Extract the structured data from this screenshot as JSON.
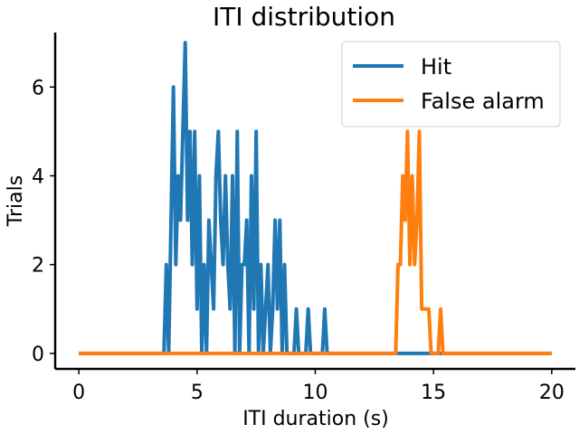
{
  "chart_data": {
    "type": "line",
    "title": "ITI distribution",
    "xlabel": "ITI duration (s)",
    "ylabel": "Trials",
    "xlim": [
      -1.0,
      21.0
    ],
    "ylim": [
      -0.35,
      7.35
    ],
    "xticks": [
      0,
      5,
      10,
      15,
      20
    ],
    "xtick_labels": [
      "0",
      "5",
      "10",
      "15",
      "20"
    ],
    "yticks": [
      0,
      2,
      4,
      6
    ],
    "ytick_labels": [
      "0",
      "2",
      "4",
      "6"
    ],
    "grid": false,
    "legend_position": "top-right",
    "colors": {
      "hit": "#1f77b4",
      "false_alarm": "#ff7f0e"
    },
    "series": [
      {
        "name": "Hit",
        "color": "#1f77b4",
        "points": [
          [
            0.0,
            0
          ],
          [
            3.6,
            0
          ],
          [
            3.7,
            2
          ],
          [
            3.8,
            0
          ],
          [
            3.9,
            3
          ],
          [
            4.0,
            6
          ],
          [
            4.1,
            2
          ],
          [
            4.2,
            4
          ],
          [
            4.3,
            3
          ],
          [
            4.4,
            5
          ],
          [
            4.5,
            7
          ],
          [
            4.6,
            3
          ],
          [
            4.7,
            5
          ],
          [
            4.8,
            2
          ],
          [
            4.9,
            5
          ],
          [
            5.0,
            1
          ],
          [
            5.1,
            4
          ],
          [
            5.2,
            0
          ],
          [
            5.3,
            2
          ],
          [
            5.4,
            0
          ],
          [
            5.5,
            3
          ],
          [
            5.6,
            2
          ],
          [
            5.7,
            1
          ],
          [
            5.8,
            4
          ],
          [
            5.9,
            5
          ],
          [
            6.0,
            3
          ],
          [
            6.1,
            2
          ],
          [
            6.2,
            4
          ],
          [
            6.3,
            2
          ],
          [
            6.4,
            1
          ],
          [
            6.5,
            4
          ],
          [
            6.6,
            0
          ],
          [
            6.7,
            5
          ],
          [
            6.8,
            0
          ],
          [
            6.9,
            2
          ],
          [
            7.0,
            2
          ],
          [
            7.1,
            3
          ],
          [
            7.2,
            0
          ],
          [
            7.3,
            4
          ],
          [
            7.4,
            1
          ],
          [
            7.5,
            5
          ],
          [
            7.6,
            0
          ],
          [
            7.7,
            2
          ],
          [
            7.8,
            0
          ],
          [
            7.9,
            1
          ],
          [
            8.0,
            2
          ],
          [
            8.1,
            0
          ],
          [
            8.2,
            1
          ],
          [
            8.3,
            3
          ],
          [
            8.4,
            1
          ],
          [
            8.5,
            3
          ],
          [
            8.6,
            0
          ],
          [
            8.7,
            2
          ],
          [
            8.8,
            0
          ],
          [
            8.9,
            0
          ],
          [
            9.0,
            0
          ],
          [
            9.1,
            0
          ],
          [
            9.2,
            1
          ],
          [
            9.3,
            0
          ],
          [
            9.4,
            0
          ],
          [
            9.5,
            0
          ],
          [
            9.6,
            0
          ],
          [
            9.7,
            1
          ],
          [
            9.8,
            0
          ],
          [
            9.9,
            0
          ],
          [
            10.0,
            0
          ],
          [
            10.1,
            0
          ],
          [
            10.2,
            0
          ],
          [
            10.3,
            0
          ],
          [
            10.4,
            1
          ],
          [
            10.5,
            0
          ],
          [
            14.7,
            0
          ],
          [
            14.8,
            0
          ],
          [
            20.0,
            0
          ]
        ]
      },
      {
        "name": "False alarm",
        "color": "#ff7f0e",
        "points": [
          [
            0.0,
            0
          ],
          [
            13.4,
            0
          ],
          [
            13.5,
            2
          ],
          [
            13.6,
            2
          ],
          [
            13.7,
            4
          ],
          [
            13.8,
            3
          ],
          [
            13.9,
            5
          ],
          [
            14.0,
            2
          ],
          [
            14.1,
            4
          ],
          [
            14.2,
            2
          ],
          [
            14.3,
            3
          ],
          [
            14.4,
            5
          ],
          [
            14.5,
            1
          ],
          [
            14.6,
            1
          ],
          [
            14.7,
            1
          ],
          [
            14.8,
            1
          ],
          [
            14.9,
            0
          ],
          [
            15.0,
            0
          ],
          [
            15.1,
            0
          ],
          [
            15.2,
            0
          ],
          [
            15.3,
            1
          ],
          [
            15.4,
            0
          ],
          [
            15.5,
            0
          ],
          [
            20.0,
            0
          ]
        ]
      }
    ]
  }
}
